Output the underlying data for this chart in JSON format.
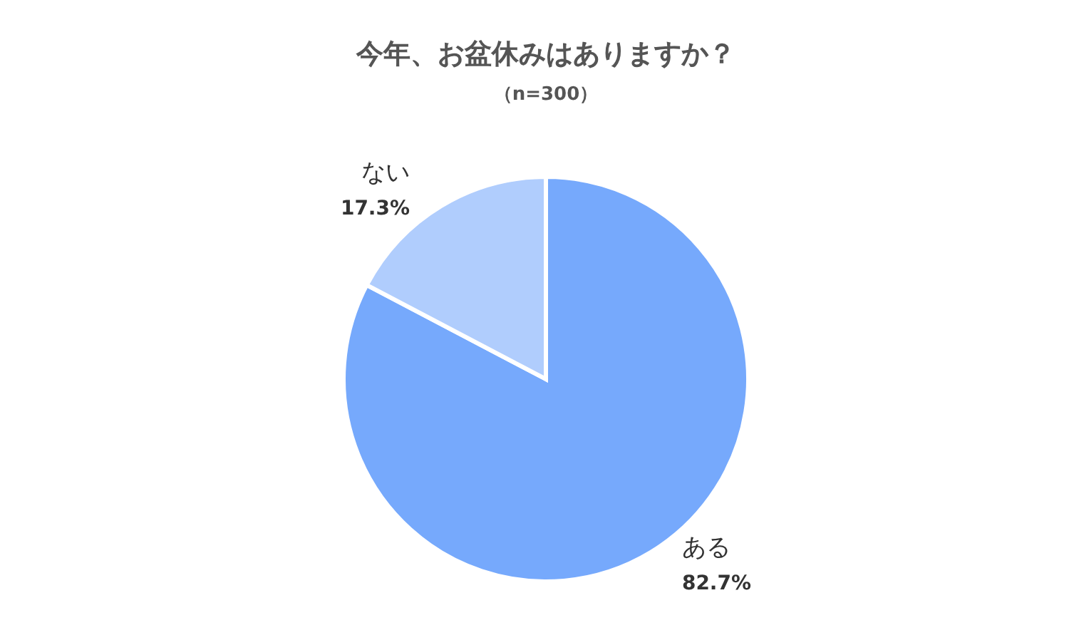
{
  "chart_data": {
    "type": "pie",
    "title": "今年、お盆休みはありますか？",
    "subtitle": "（n=300）",
    "categories": [
      "ある",
      "ない"
    ],
    "values": [
      82.7,
      17.3
    ],
    "value_labels": [
      "82.7%",
      "17.3%"
    ],
    "colors": [
      "#76a9fc",
      "#b0cdfd"
    ]
  }
}
